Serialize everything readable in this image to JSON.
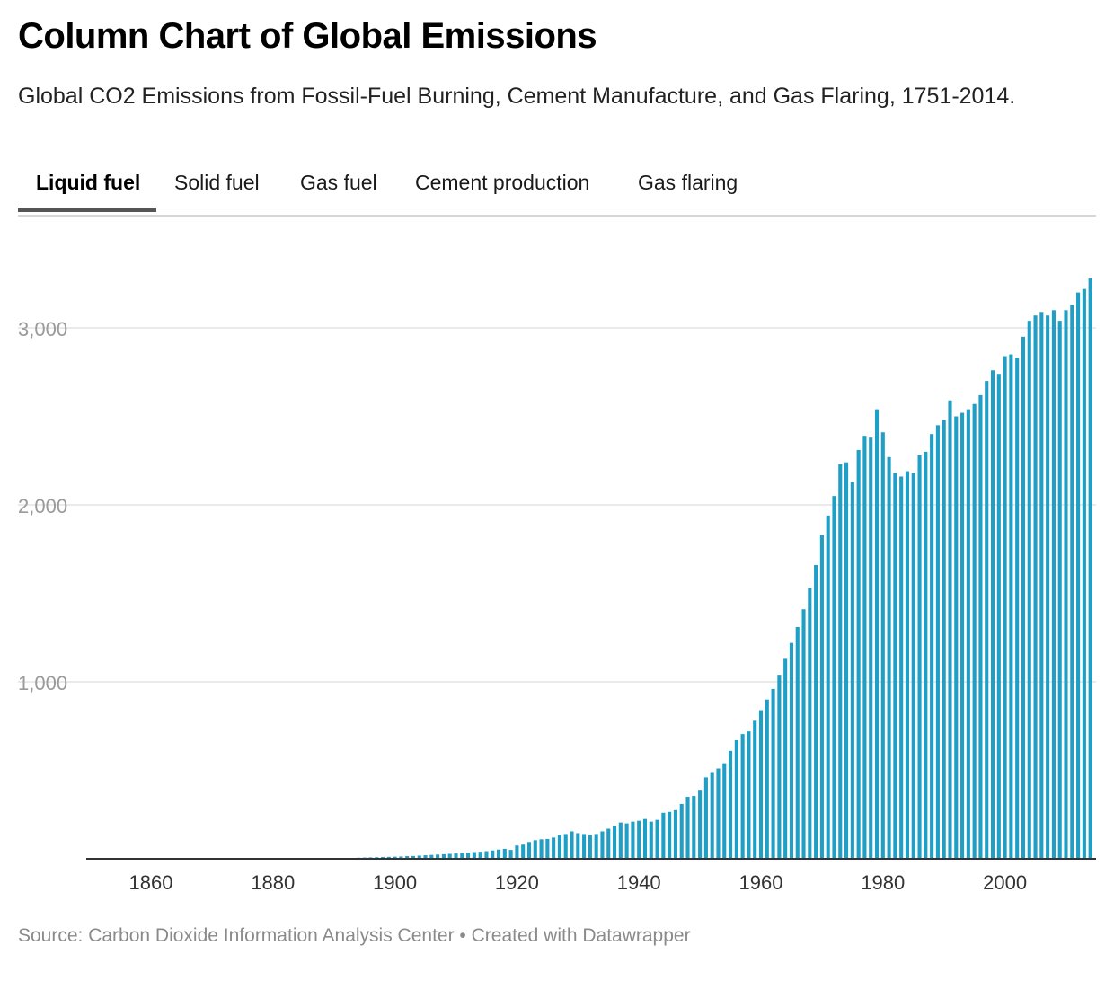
{
  "header": {
    "title": "Column Chart of Global Emissions",
    "subtitle": "Global CO2 Emissions from Fossil-Fuel Burning, Cement Manufacture, and Gas Flaring, 1751-2014."
  },
  "tabs": [
    {
      "label": "Liquid fuel",
      "active": true
    },
    {
      "label": "Solid fuel",
      "active": false
    },
    {
      "label": "Gas fuel",
      "active": false
    },
    {
      "label": "Cement production",
      "active": false
    },
    {
      "label": "Gas flaring",
      "active": false
    }
  ],
  "footer": {
    "source": "Source: Carbon Dioxide Information Analysis Center",
    "separator": "•",
    "credit": "Created with Datawrapper"
  },
  "colors": {
    "bar": "#1f9ec6",
    "grid": "#e3e3e3",
    "axis": "#333333",
    "tick_label": "#9a9a9a"
  },
  "chart_data": {
    "type": "bar",
    "title": "Column Chart of Global Emissions",
    "subtitle": "Global CO2 Emissions from Fossil-Fuel Burning, Cement Manufacture, and Gas Flaring, 1751-2014.",
    "xlabel": "",
    "ylabel": "",
    "xlim": [
      1850,
      2014
    ],
    "ylim": [
      0,
      3300
    ],
    "x_ticks": [
      1860,
      1880,
      1900,
      1920,
      1940,
      1960,
      1980,
      2000
    ],
    "x_tick_labels": [
      "1860",
      "1880",
      "1900",
      "1920",
      "1940",
      "1960",
      "1980",
      "2000"
    ],
    "y_ticks": [
      1000,
      2000,
      3000
    ],
    "y_tick_labels": [
      "1,000",
      "2,000",
      "3,000"
    ],
    "grid": true,
    "series_name": "Liquid fuel",
    "categories": [
      1890,
      1891,
      1892,
      1893,
      1894,
      1895,
      1896,
      1897,
      1898,
      1899,
      1900,
      1901,
      1902,
      1903,
      1904,
      1905,
      1906,
      1907,
      1908,
      1909,
      1910,
      1911,
      1912,
      1913,
      1914,
      1915,
      1916,
      1917,
      1918,
      1919,
      1920,
      1921,
      1922,
      1923,
      1924,
      1925,
      1926,
      1927,
      1928,
      1929,
      1930,
      1931,
      1932,
      1933,
      1934,
      1935,
      1936,
      1937,
      1938,
      1939,
      1940,
      1941,
      1942,
      1943,
      1944,
      1945,
      1946,
      1947,
      1948,
      1949,
      1950,
      1951,
      1952,
      1953,
      1954,
      1955,
      1956,
      1957,
      1958,
      1959,
      1960,
      1961,
      1962,
      1963,
      1964,
      1965,
      1966,
      1967,
      1968,
      1969,
      1970,
      1971,
      1972,
      1973,
      1974,
      1975,
      1976,
      1977,
      1978,
      1979,
      1980,
      1981,
      1982,
      1983,
      1984,
      1985,
      1986,
      1987,
      1988,
      1989,
      1990,
      1991,
      1992,
      1993,
      1994,
      1995,
      1996,
      1997,
      1998,
      1999,
      2000,
      2001,
      2002,
      2003,
      2004,
      2005,
      2006,
      2007,
      2008,
      2009,
      2010,
      2011,
      2012,
      2013,
      2014
    ],
    "values": [
      3,
      4,
      5,
      5,
      6,
      7,
      8,
      9,
      10,
      11,
      12,
      13,
      15,
      16,
      18,
      20,
      22,
      24,
      26,
      28,
      30,
      33,
      35,
      38,
      40,
      43,
      47,
      52,
      56,
      50,
      75,
      80,
      95,
      105,
      110,
      112,
      120,
      135,
      140,
      155,
      145,
      140,
      135,
      140,
      155,
      170,
      185,
      205,
      200,
      210,
      215,
      225,
      210,
      220,
      260,
      265,
      275,
      310,
      350,
      355,
      390,
      460,
      490,
      510,
      540,
      610,
      670,
      705,
      720,
      780,
      840,
      900,
      960,
      1040,
      1130,
      1220,
      1310,
      1410,
      1530,
      1660,
      1830,
      1940,
      2050,
      2230,
      2240,
      2130,
      2310,
      2390,
      2380,
      2540,
      2410,
      2270,
      2180,
      2160,
      2190,
      2180,
      2280,
      2300,
      2400,
      2450,
      2480,
      2590,
      2500,
      2520,
      2540,
      2570,
      2620,
      2700,
      2760,
      2740,
      2840,
      2850,
      2830,
      2950,
      3040,
      3070,
      3090,
      3070,
      3100,
      3040,
      3100,
      3130,
      3200,
      3220,
      3280
    ]
  }
}
